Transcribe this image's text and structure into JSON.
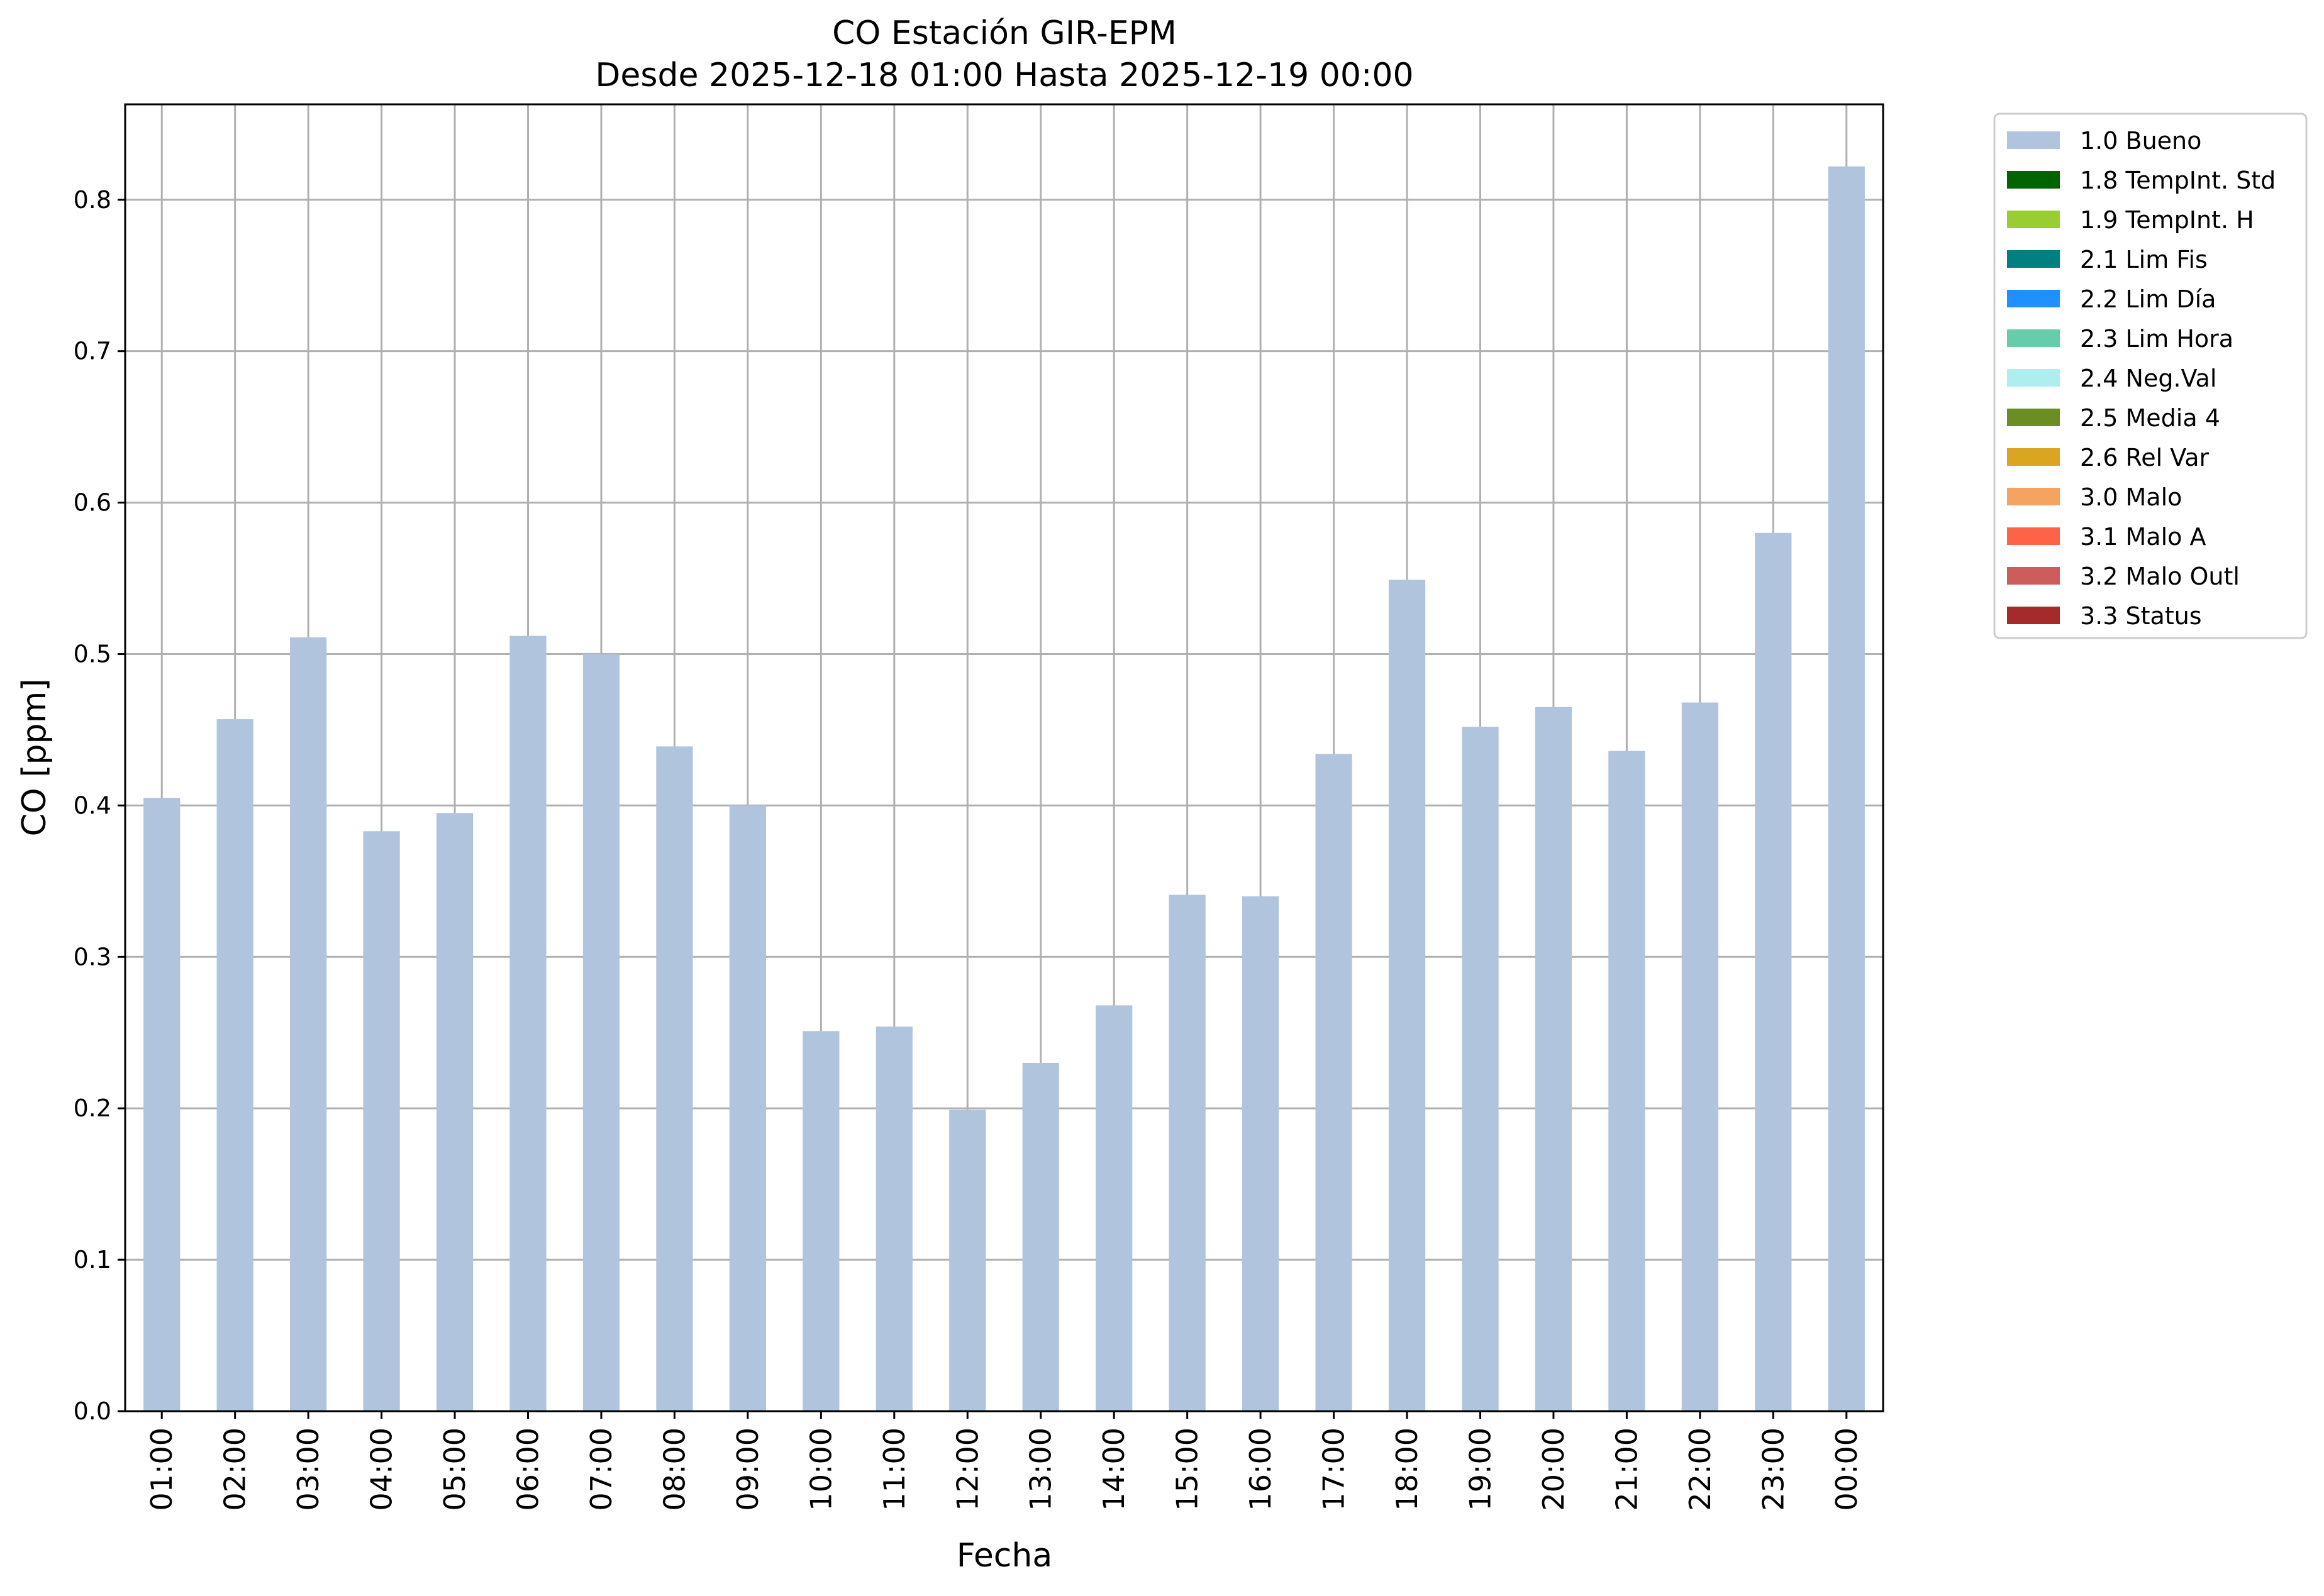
{
  "chart_data": {
    "type": "bar",
    "title": "CO Estación GIR-EPM",
    "subtitle": "Desde 2025-12-18 01:00 Hasta 2025-12-19 00:00",
    "xlabel": "Fecha",
    "ylabel": "CO [ppm]",
    "ylim": [
      0,
      0.863
    ],
    "yticks": [
      "0.0",
      "0.1",
      "0.2",
      "0.3",
      "0.4",
      "0.5",
      "0.6",
      "0.7",
      "0.8"
    ],
    "grid": true,
    "legend_position": "outside-right-top",
    "categories": [
      "01:00",
      "02:00",
      "03:00",
      "04:00",
      "05:00",
      "06:00",
      "07:00",
      "08:00",
      "09:00",
      "10:00",
      "11:00",
      "12:00",
      "13:00",
      "14:00",
      "15:00",
      "16:00",
      "17:00",
      "18:00",
      "19:00",
      "20:00",
      "21:00",
      "22:00",
      "23:00",
      "00:00"
    ],
    "series": [
      {
        "name": "1.0 Bueno",
        "color": "#b0c4de",
        "values": [
          0.405,
          0.457,
          0.511,
          0.383,
          0.395,
          0.512,
          0.5,
          0.439,
          0.4,
          0.251,
          0.254,
          0.199,
          0.23,
          0.268,
          0.341,
          0.34,
          0.434,
          0.549,
          0.452,
          0.465,
          0.436,
          0.468,
          0.58,
          0.822
        ]
      }
    ],
    "legend": [
      {
        "label": "1.0 Bueno",
        "color": "#b0c4de"
      },
      {
        "label": "1.8 TempInt. Std",
        "color": "#006400"
      },
      {
        "label": "1.9 TempInt. H",
        "color": "#9acd32"
      },
      {
        "label": "2.1 Lim Fis",
        "color": "#008080"
      },
      {
        "label": "2.2 Lim Día",
        "color": "#1e90ff"
      },
      {
        "label": "2.3 Lim Hora",
        "color": "#66cdaa"
      },
      {
        "label": "2.4 Neg.Val",
        "color": "#afeeee"
      },
      {
        "label": "2.5 Media 4",
        "color": "#6b8e23"
      },
      {
        "label": "2.6 Rel Var",
        "color": "#daa520"
      },
      {
        "label": "3.0 Malo",
        "color": "#f4a460"
      },
      {
        "label": "3.1 Malo A",
        "color": "#ff6347"
      },
      {
        "label": "3.2 Malo Outl",
        "color": "#cd5c5c"
      },
      {
        "label": "3.3 Status",
        "color": "#a52a2a"
      }
    ]
  }
}
